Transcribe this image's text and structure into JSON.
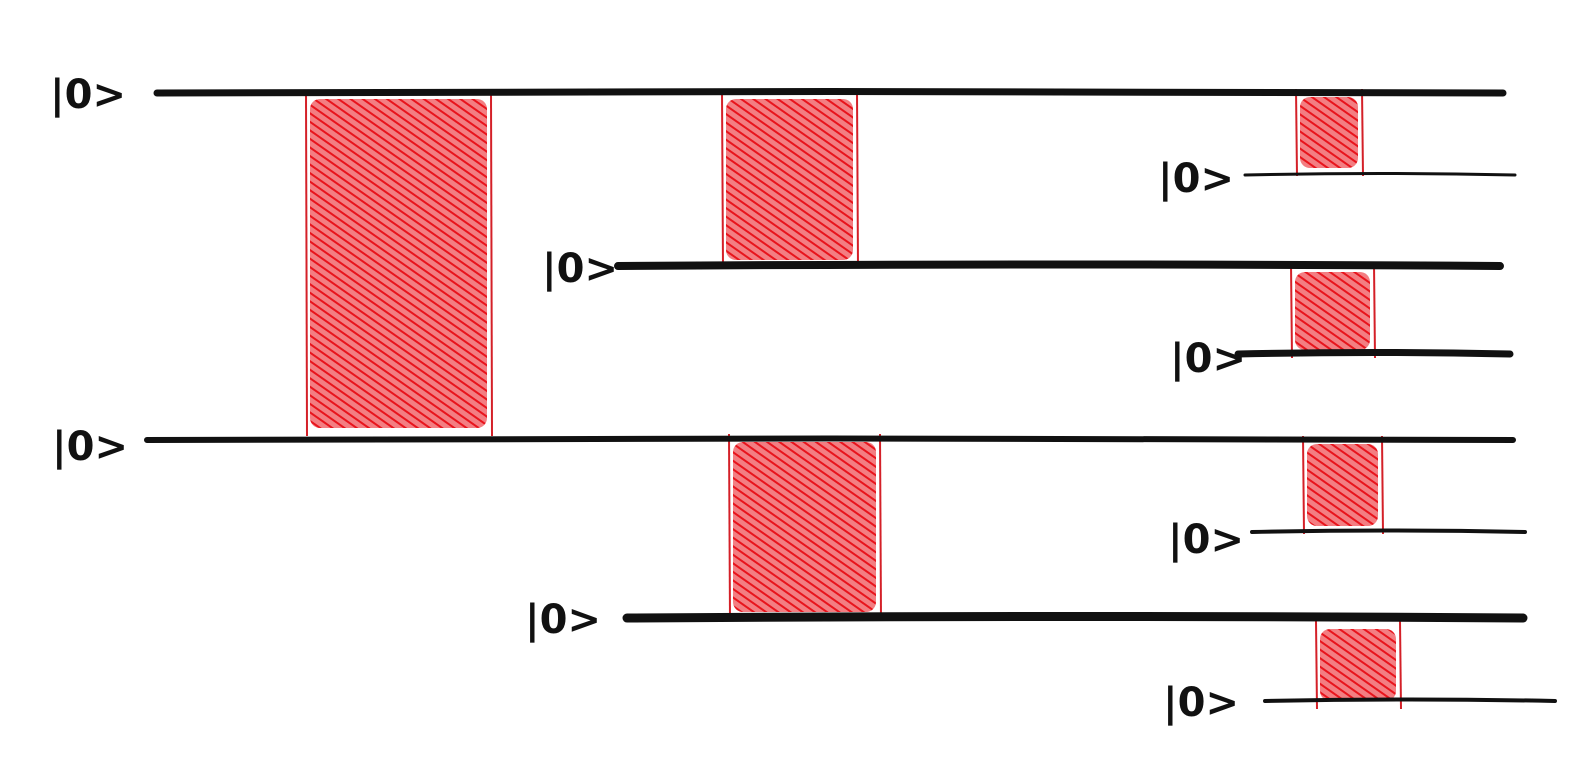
{
  "colors": {
    "wire": "#111111",
    "gate_fill": "#e8141c",
    "gate_edge": "#d42028",
    "background": "#ffffff"
  },
  "qubits": [
    {
      "label": "|0>"
    },
    {
      "label": "|0>"
    },
    {
      "label": "|0>"
    },
    {
      "label": "|0>"
    },
    {
      "label": "|0>"
    },
    {
      "label": "|0>"
    },
    {
      "label": "|0>"
    },
    {
      "label": "|0>"
    }
  ],
  "gates": [
    {
      "from_qubit": 0,
      "to_qubit": 1,
      "level": 1
    },
    {
      "from_qubit": 0,
      "to_qubit": 2,
      "level": 2
    },
    {
      "from_qubit": 1,
      "to_qubit": 3,
      "level": 2
    },
    {
      "from_qubit": 0,
      "to_qubit": 4,
      "level": 3
    },
    {
      "from_qubit": 2,
      "to_qubit": 5,
      "level": 3
    },
    {
      "from_qubit": 1,
      "to_qubit": 6,
      "level": 3
    },
    {
      "from_qubit": 3,
      "to_qubit": 7,
      "level": 3
    }
  ]
}
